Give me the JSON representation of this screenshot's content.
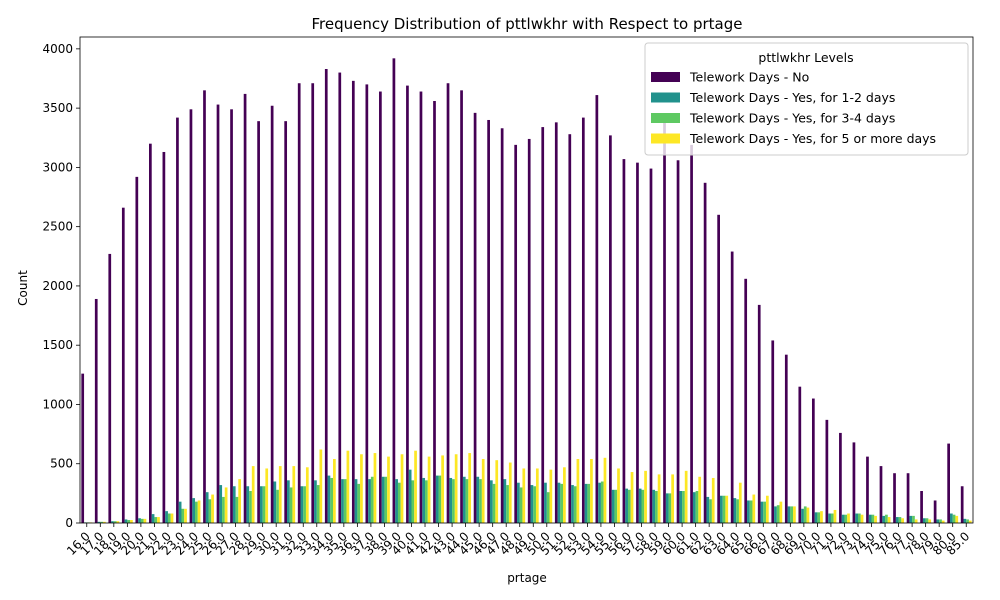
{
  "chart_data": {
    "type": "bar",
    "title": "Frequency Distribution of pttlwkhr with Respect to prtage",
    "xlabel": "prtage",
    "ylabel": "Count",
    "ylim": [
      0,
      4100
    ],
    "yticks": [
      0,
      500,
      1000,
      1500,
      2000,
      2500,
      3000,
      3500,
      4000
    ],
    "grid": false,
    "legend": {
      "title": "pttlwkhr Levels",
      "placement": "top-right"
    },
    "categories": [
      "16.0",
      "17.0",
      "18.0",
      "19.0",
      "20.0",
      "21.0",
      "22.0",
      "23.0",
      "24.0",
      "25.0",
      "26.0",
      "27.0",
      "28.0",
      "29.0",
      "30.0",
      "31.0",
      "32.0",
      "33.0",
      "34.0",
      "35.0",
      "36.0",
      "37.0",
      "38.0",
      "39.0",
      "40.0",
      "41.0",
      "42.0",
      "43.0",
      "44.0",
      "45.0",
      "46.0",
      "47.0",
      "48.0",
      "49.0",
      "50.0",
      "51.0",
      "52.0",
      "53.0",
      "54.0",
      "55.0",
      "56.0",
      "57.0",
      "58.0",
      "59.0",
      "60.0",
      "61.0",
      "62.0",
      "63.0",
      "64.0",
      "65.0",
      "66.0",
      "67.0",
      "68.0",
      "69.0",
      "70.0",
      "71.0",
      "72.0",
      "73.0",
      "74.0",
      "75.0",
      "76.0",
      "77.0",
      "78.0",
      "79.0",
      "80.0",
      "85.0"
    ],
    "series": [
      {
        "name": "Telework Days - No",
        "color": "#440154",
        "values": [
          1260,
          1890,
          2270,
          2660,
          2920,
          3200,
          3130,
          3420,
          3490,
          3650,
          3530,
          3490,
          3620,
          3390,
          3520,
          3390,
          3710,
          3710,
          3830,
          3800,
          3730,
          3700,
          3640,
          3920,
          3690,
          3640,
          3560,
          3710,
          3650,
          3460,
          3400,
          3330,
          3190,
          3240,
          3340,
          3380,
          3280,
          3420,
          3610,
          3270,
          3070,
          3040,
          2990,
          3400,
          3060,
          3190,
          2870,
          2600,
          2290,
          2060,
          1840,
          1540,
          1420,
          1150,
          1050,
          870,
          760,
          680,
          560,
          480,
          420,
          420,
          270,
          190,
          670,
          310
        ]
      },
      {
        "name": "Telework Days - Yes, for 1-2 days",
        "color": "#21918c",
        "values": [
          5,
          10,
          15,
          30,
          40,
          75,
          100,
          180,
          210,
          260,
          320,
          310,
          310,
          310,
          350,
          360,
          310,
          360,
          400,
          370,
          370,
          370,
          390,
          370,
          450,
          380,
          400,
          380,
          390,
          390,
          360,
          370,
          340,
          320,
          340,
          340,
          320,
          330,
          340,
          280,
          290,
          290,
          280,
          250,
          270,
          260,
          220,
          230,
          210,
          190,
          180,
          140,
          140,
          120,
          90,
          80,
          70,
          80,
          70,
          60,
          50,
          60,
          40,
          30,
          80,
          35
        ]
      },
      {
        "name": "Telework Days - Yes, for 3-4 days",
        "color": "#5ec962",
        "values": [
          5,
          10,
          15,
          25,
          35,
          50,
          80,
          120,
          180,
          200,
          220,
          220,
          270,
          310,
          280,
          300,
          310,
          320,
          380,
          370,
          330,
          390,
          390,
          340,
          360,
          360,
          400,
          370,
          370,
          370,
          330,
          320,
          300,
          310,
          260,
          330,
          310,
          330,
          350,
          280,
          280,
          280,
          270,
          250,
          270,
          270,
          200,
          230,
          200,
          190,
          180,
          150,
          140,
          140,
          90,
          80,
          70,
          80,
          70,
          70,
          50,
          60,
          40,
          30,
          70,
          30
        ]
      },
      {
        "name": "Telework Days - Yes, for 5 or more days",
        "color": "#fde725",
        "values": [
          5,
          10,
          15,
          25,
          35,
          50,
          80,
          120,
          190,
          240,
          300,
          370,
          480,
          460,
          480,
          480,
          470,
          620,
          540,
          610,
          580,
          590,
          560,
          580,
          610,
          560,
          570,
          580,
          590,
          540,
          530,
          510,
          460,
          460,
          450,
          470,
          540,
          540,
          550,
          460,
          430,
          440,
          410,
          410,
          440,
          390,
          380,
          230,
          340,
          240,
          230,
          180,
          140,
          130,
          100,
          110,
          80,
          70,
          60,
          50,
          40,
          30,
          30,
          20,
          60,
          20
        ]
      }
    ]
  }
}
